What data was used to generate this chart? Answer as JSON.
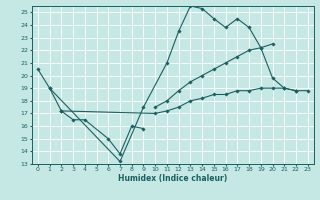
{
  "xlabel": "Humidex (Indice chaleur)",
  "ylabel": "",
  "bg_color": "#c5e8e5",
  "grid_color": "#ffffff",
  "line_color": "#1a6060",
  "xlim": [
    -0.5,
    23.5
  ],
  "ylim": [
    13,
    25.5
  ],
  "yticks": [
    13,
    14,
    15,
    16,
    17,
    18,
    19,
    20,
    21,
    22,
    23,
    24,
    25
  ],
  "xticks": [
    0,
    1,
    2,
    3,
    4,
    5,
    6,
    7,
    8,
    9,
    10,
    11,
    12,
    13,
    14,
    15,
    16,
    17,
    18,
    19,
    20,
    21,
    22,
    23
  ],
  "xtick_labels": [
    "0",
    "1",
    "2",
    "3",
    "4",
    "5",
    "6",
    "7",
    "8",
    "9",
    "10",
    "11",
    "12",
    "13",
    "14",
    "15",
    "16",
    "17",
    "18",
    "19",
    "20",
    "21",
    "22",
    "23"
  ],
  "series": [
    {
      "x": [
        0,
        1,
        7,
        9,
        11,
        12,
        13,
        14,
        15,
        16,
        17,
        18,
        19,
        20,
        21,
        22
      ],
      "y": [
        20.5,
        19.0,
        13.2,
        17.5,
        21.0,
        23.5,
        25.5,
        25.3,
        24.5,
        23.8,
        24.5,
        23.8,
        22.2,
        19.8,
        19.0,
        18.8
      ]
    },
    {
      "x": [
        1,
        2,
        3,
        4,
        6,
        7,
        8,
        9
      ],
      "y": [
        19.0,
        17.2,
        16.5,
        16.5,
        15.0,
        13.8,
        16.0,
        15.8
      ]
    },
    {
      "x": [
        2,
        10,
        11,
        12,
        13,
        14,
        15,
        16,
        17,
        18,
        19,
        20,
        21,
        22,
        23
      ],
      "y": [
        17.2,
        17.0,
        17.2,
        17.5,
        18.0,
        18.2,
        18.5,
        18.5,
        18.8,
        18.8,
        19.0,
        19.0,
        19.0,
        18.8,
        18.8
      ]
    },
    {
      "x": [
        10,
        11,
        12,
        13,
        14,
        15,
        16,
        17,
        18,
        19,
        20
      ],
      "y": [
        17.5,
        18.0,
        18.8,
        19.5,
        20.0,
        20.5,
        21.0,
        21.5,
        22.0,
        22.2,
        22.5
      ]
    }
  ]
}
